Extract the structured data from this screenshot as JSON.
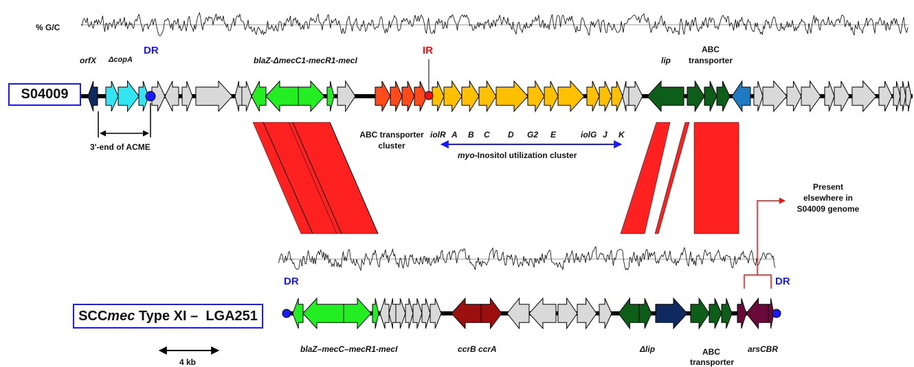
{
  "gc_label": "% G/C",
  "top_name": "S04009",
  "bottom_name_pre": "SCC",
  "bottom_name_it": "mec",
  "bottom_name_post": " Type XI –  LGA251",
  "top": {
    "orfX": "orfX",
    "copA": "ΔcopA",
    "dr": "DR",
    "bla": "blaZ-ΔmecC1-mecR1-mecI",
    "ir": "IR",
    "lip": "lip",
    "abc1": "ABC",
    "abc2": "transporter",
    "acme": "3'-end of ACME",
    "abc_cluster_1": "ABC transporter",
    "abc_cluster_2": "cluster",
    "iol_genes": [
      "iolR",
      "A",
      "B",
      "C",
      "D",
      "G2",
      "E",
      "iolG",
      "J",
      "K"
    ],
    "myo_it": "myo",
    "myo_rest": "-Inositol utilization cluster"
  },
  "bottom": {
    "dr_left": "DR",
    "dr_right": "DR",
    "bla": "blaZ–mecC–mecR1-mecI",
    "ccr": "ccrB ccrA",
    "lip": "Δlip",
    "abc1": "ABC",
    "abc2": "transporter",
    "ars": "arsCBR"
  },
  "present_1": "Present",
  "present_2": "elsewhere in",
  "present_3": "S04009 genome",
  "scale": "4 kb",
  "colors": {
    "grey": "#d9d9d9",
    "cyan": "#33e5f2",
    "navy": "#0f2a5e",
    "green": "#22ee22",
    "orange_red": "#ff4a1a",
    "yellow": "#ffc000",
    "dark_green": "#0d5e18",
    "blue": "#1f7ac4",
    "dark_red": "#9b0f0f",
    "maroon": "#6a0a3a",
    "red_band": "#ff2020",
    "dr_blue": "#1a1aff",
    "ir_red": "#ee1111"
  }
}
